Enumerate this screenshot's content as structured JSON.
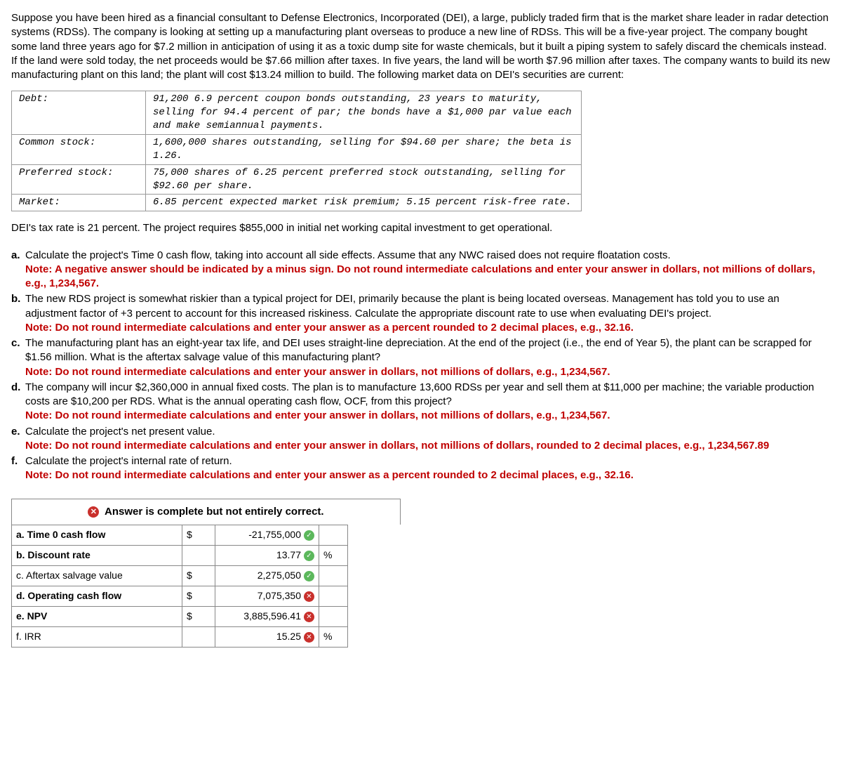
{
  "intro": "Suppose you have been hired as a financial consultant to Defense Electronics, Incorporated (DEI), a large, publicly traded firm that is the market share leader in radar detection systems (RDSs). The company is looking at setting up a manufacturing plant overseas to produce a new line of RDSs. This will be a five-year project. The company bought some land three years ago for $7.2 million in anticipation of using it as a toxic dump site for waste chemicals, but it built a piping system to safely discard the chemicals instead. If the land were sold today, the net proceeds would be $7.66 million after taxes. In five years, the land will be worth $7.96 million after taxes. The company wants to build its new manufacturing plant on this land; the plant will cost $13.24 million to build. The following market data on DEI's securities are current:",
  "securities": [
    {
      "label": "Debt:",
      "value": "91,200 6.9 percent coupon bonds outstanding, 23 years to maturity, selling for 94.4 percent of par; the bonds have a $1,000 par value each and make semiannual payments."
    },
    {
      "label": "Common stock:",
      "value": "1,600,000 shares outstanding, selling for $94.60 per share; the beta is 1.26."
    },
    {
      "label": "Preferred stock:",
      "value": "75,000 shares of 6.25 percent preferred stock outstanding, selling for $92.60 per share."
    },
    {
      "label": "Market:",
      "value": "6.85 percent expected market risk premium; 5.15 percent risk-free rate."
    }
  ],
  "taxline": "DEI's tax rate is 21 percent. The project requires $855,000 in initial net working capital investment to get operational.",
  "questions": {
    "a": {
      "letter": "a.",
      "text": "Calculate the project's Time 0 cash flow, taking into account all side effects. Assume that any NWC raised does not require floatation costs.",
      "note": "Note: A negative answer should be indicated by a minus sign. Do not round intermediate calculations and enter your answer in dollars, not millions of dollars, e.g., 1,234,567."
    },
    "b": {
      "letter": "b.",
      "text": "The new RDS project is somewhat riskier than a typical project for DEI, primarily because the plant is being located overseas. Management has told you to use an adjustment factor of +3 percent to account for this increased riskiness. Calculate the appropriate discount rate to use when evaluating DEI's project.",
      "note": "Note: Do not round intermediate calculations and enter your answer as a percent rounded to 2 decimal places, e.g., 32.16."
    },
    "c": {
      "letter": "c.",
      "text": "The manufacturing plant has an eight-year tax life, and DEI uses straight-line depreciation. At the end of the project (i.e., the end of Year 5), the plant can be scrapped for $1.56 million. What is the aftertax salvage value of this manufacturing plant?",
      "note": "Note: Do not round intermediate calculations and enter your answer in dollars, not millions of dollars, e.g., 1,234,567."
    },
    "d": {
      "letter": "d.",
      "text": "The company will incur $2,360,000 in annual fixed costs. The plan is to manufacture 13,600 RDSs per year and sell them at $11,000 per machine; the variable production costs are $10,200 per RDS. What is the annual operating cash flow, OCF, from this project?",
      "note": "Note: Do not round intermediate calculations and enter your answer in dollars, not millions of dollars, e.g., 1,234,567."
    },
    "e": {
      "letter": "e.",
      "text": "Calculate the project's net present value.",
      "note": "Note: Do not round intermediate calculations and enter your answer in dollars, not millions of dollars, rounded to 2 decimal places, e.g., 1,234,567.89"
    },
    "f": {
      "letter": "f.",
      "text": "Calculate the project's internal rate of return.",
      "note": "Note: Do not round intermediate calculations and enter your answer as a percent rounded to 2 decimal places, e.g., 32.16."
    }
  },
  "answer_header": "Answer is complete but not entirely correct.",
  "answers": [
    {
      "label": "a. Time 0 cash flow",
      "cur": "$",
      "value": "-21,755,000",
      "unit": "",
      "status": "ok",
      "bold": true
    },
    {
      "label": "b. Discount rate",
      "cur": "",
      "value": "13.77",
      "unit": "%",
      "status": "ok",
      "bold": true
    },
    {
      "label": "c. Aftertax salvage value",
      "cur": "$",
      "value": "2,275,050",
      "unit": "",
      "status": "ok",
      "bold": false
    },
    {
      "label": "d. Operating cash flow",
      "cur": "$",
      "value": "7,075,350",
      "unit": "",
      "status": "bad",
      "bold": true
    },
    {
      "label": "e. NPV",
      "cur": "$",
      "value": "3,885,596.41",
      "unit": "",
      "status": "bad",
      "bold": true
    },
    {
      "label": "f. IRR",
      "cur": "",
      "value": "15.25",
      "unit": "%",
      "status": "bad",
      "bold": false
    }
  ],
  "icons": {
    "check": "✓",
    "cross": "✕"
  }
}
